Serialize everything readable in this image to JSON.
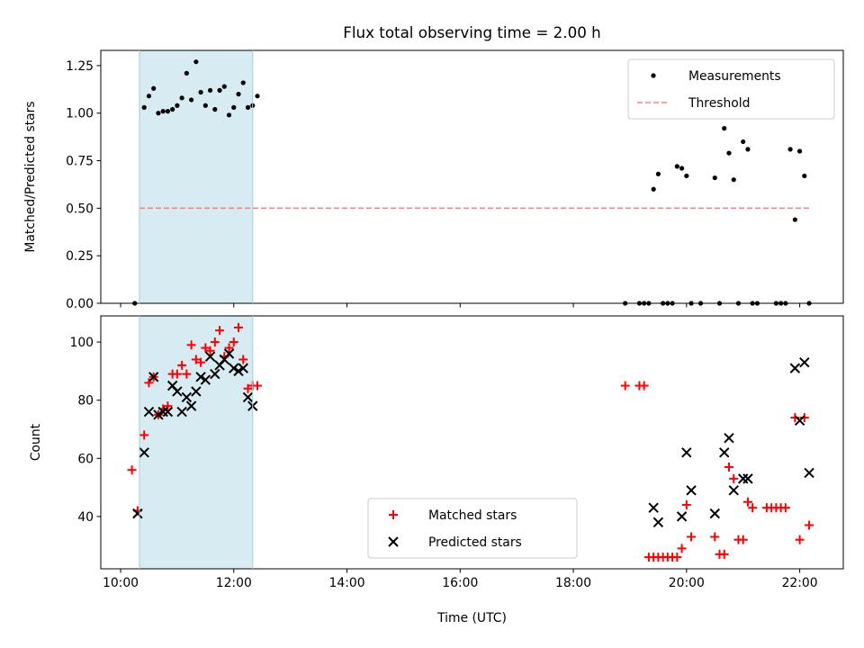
{
  "chart_data": [
    {
      "type": "scatter",
      "title": "Flux total observing time = 2.00 h",
      "xlabel": "",
      "ylabel": "Matched/Predicted stars",
      "ylim": [
        0,
        1.33
      ],
      "xlim": [
        9.65,
        22.77
      ],
      "yticks": [
        "0.00",
        "0.25",
        "0.50",
        "0.75",
        "1.00",
        "1.25"
      ],
      "grid": false,
      "legend_position": "top-right",
      "shaded_interval": {
        "start": "10:20",
        "end": "12:20",
        "color": "#add8e6"
      },
      "series": [
        {
          "name": "Measurements",
          "color": "#000000",
          "marker": "dot",
          "x": [
            "10:15",
            "10:25",
            "10:30",
            "10:35",
            "10:40",
            "10:45",
            "10:50",
            "10:55",
            "11:00",
            "11:05",
            "11:10",
            "11:15",
            "11:20",
            "11:25",
            "11:30",
            "11:35",
            "11:40",
            "11:45",
            "11:50",
            "11:55",
            "12:00",
            "12:05",
            "12:10",
            "12:15",
            "12:20",
            "12:25",
            "18:55",
            "19:10",
            "19:15",
            "19:20",
            "19:25",
            "19:30",
            "19:35",
            "19:40",
            "19:45",
            "19:50",
            "19:55",
            "20:00",
            "20:05",
            "20:15",
            "20:30",
            "20:35",
            "20:40",
            "20:45",
            "20:50",
            "20:55",
            "21:00",
            "21:05",
            "21:10",
            "21:15",
            "21:35",
            "21:40",
            "21:45",
            "21:50",
            "21:55",
            "22:00",
            "22:05",
            "22:10"
          ],
          "y": [
            0.0,
            1.03,
            1.09,
            1.13,
            1.0,
            1.01,
            1.01,
            1.02,
            1.04,
            1.08,
            1.21,
            1.07,
            1.27,
            1.11,
            1.04,
            1.12,
            1.02,
            1.12,
            1.14,
            0.99,
            1.03,
            1.1,
            1.16,
            1.03,
            1.04,
            1.09,
            0.0,
            0.0,
            0.0,
            0.0,
            0.6,
            0.68,
            0.0,
            0.0,
            0.0,
            0.72,
            0.71,
            0.67,
            0.0,
            0.0,
            0.66,
            0.0,
            0.92,
            0.79,
            0.65,
            0.0,
            0.85,
            0.81,
            0.0,
            0.0,
            0.0,
            0.0,
            0.0,
            0.81,
            0.44,
            0.8,
            0.67,
            0.0
          ]
        },
        {
          "name": "Threshold",
          "color": "#ff8080",
          "style": "dashed",
          "x": [
            "10:20",
            "22:10"
          ],
          "y": [
            0.5,
            0.5
          ]
        }
      ]
    },
    {
      "type": "scatter",
      "title": "",
      "xlabel": "Time (UTC)",
      "ylabel": "Count",
      "ylim": [
        22,
        109
      ],
      "xlim": [
        9.65,
        22.77
      ],
      "yticks": [
        "40",
        "60",
        "80",
        "100"
      ],
      "xticks": [
        "10:00",
        "12:00",
        "14:00",
        "16:00",
        "18:00",
        "20:00",
        "22:00"
      ],
      "grid": false,
      "legend_position": "bottom-center",
      "shaded_interval": {
        "start": "10:20",
        "end": "12:20",
        "color": "#add8e6"
      },
      "series": [
        {
          "name": "Matched stars",
          "color": "#ff0000",
          "marker": "plus",
          "x": [
            "10:12",
            "10:18",
            "10:25",
            "10:30",
            "10:35",
            "10:40",
            "10:45",
            "10:50",
            "10:55",
            "11:00",
            "11:05",
            "11:10",
            "11:15",
            "11:20",
            "11:25",
            "11:30",
            "11:35",
            "11:40",
            "11:45",
            "11:50",
            "11:55",
            "12:00",
            "12:05",
            "12:10",
            "12:15",
            "12:20",
            "12:25",
            "18:55",
            "19:10",
            "19:15",
            "19:20",
            "19:25",
            "19:30",
            "19:35",
            "19:40",
            "19:45",
            "19:50",
            "19:55",
            "20:00",
            "20:05",
            "20:30",
            "20:35",
            "20:40",
            "20:45",
            "20:50",
            "20:55",
            "21:00",
            "21:05",
            "21:10",
            "21:25",
            "21:30",
            "21:35",
            "21:40",
            "21:45",
            "21:55",
            "22:00",
            "22:05",
            "22:10"
          ],
          "y": [
            56,
            42,
            68,
            86,
            88,
            75,
            77,
            78,
            89,
            89,
            92,
            89,
            99,
            94,
            93,
            98,
            97,
            100,
            104,
            95,
            98,
            100,
            105,
            94,
            84,
            85,
            85,
            85,
            85,
            85,
            26,
            26,
            26,
            26,
            26,
            26,
            26,
            29,
            44,
            33,
            33,
            27,
            27,
            57,
            53,
            32,
            32,
            45,
            43,
            43,
            43,
            43,
            43,
            43,
            74,
            32,
            74,
            37
          ]
        },
        {
          "name": "Predicted stars",
          "color": "#000000",
          "marker": "x",
          "x": [
            "10:18",
            "10:25",
            "10:30",
            "10:35",
            "10:40",
            "10:45",
            "10:50",
            "10:55",
            "11:00",
            "11:05",
            "11:10",
            "11:15",
            "11:20",
            "11:25",
            "11:30",
            "11:35",
            "11:40",
            "11:45",
            "11:50",
            "11:55",
            "12:00",
            "12:05",
            "12:10",
            "12:15",
            "12:20",
            "19:25",
            "19:30",
            "19:55",
            "20:00",
            "20:05",
            "20:30",
            "20:40",
            "20:45",
            "20:50",
            "21:00",
            "21:05",
            "21:55",
            "22:00",
            "22:05",
            "22:10"
          ],
          "y": [
            41,
            62,
            76,
            88,
            75,
            76,
            76,
            85,
            83,
            76,
            81,
            78,
            83,
            88,
            87,
            95,
            89,
            92,
            94,
            96,
            91,
            90,
            91,
            81,
            78,
            43,
            38,
            40,
            62,
            49,
            41,
            62,
            67,
            49,
            53,
            53,
            91,
            73,
            93,
            55
          ]
        }
      ]
    }
  ]
}
